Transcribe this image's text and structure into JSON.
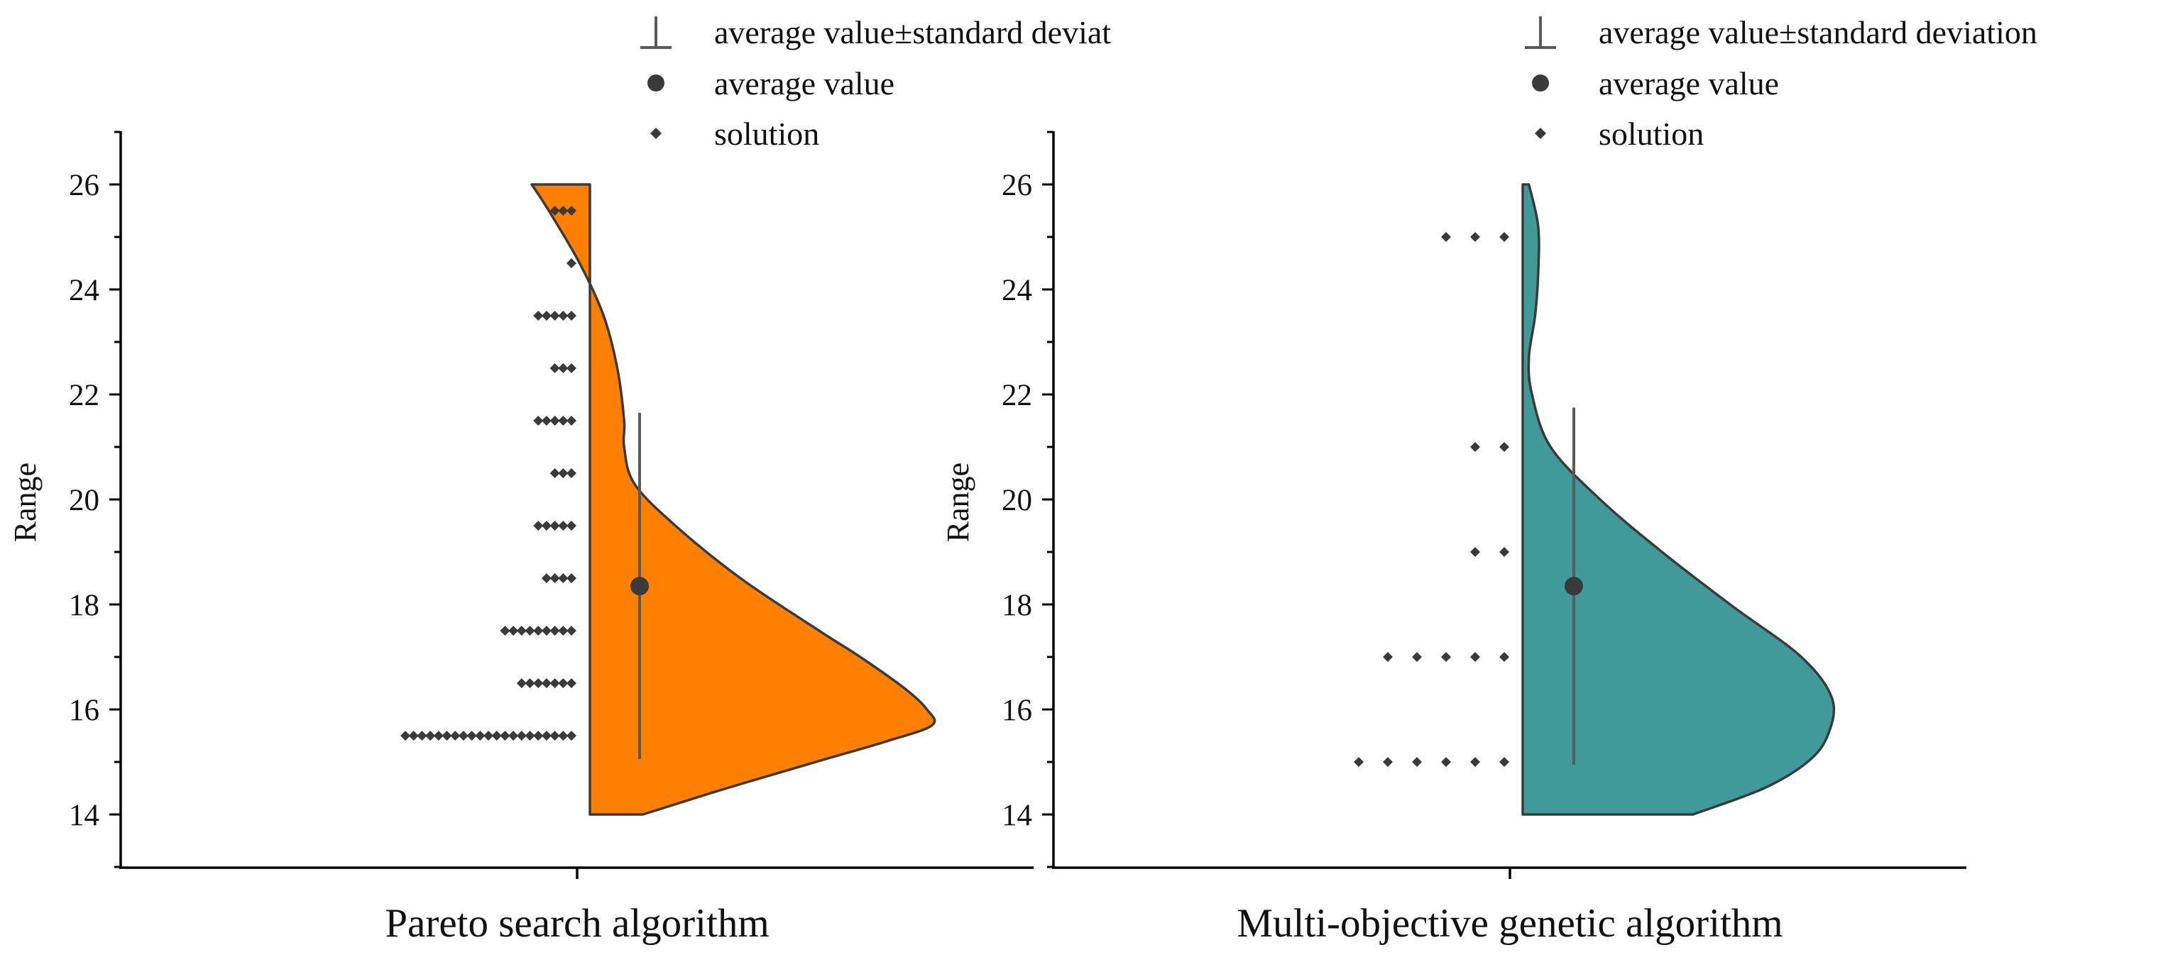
{
  "colors": {
    "axis": "#000000",
    "outline": "#3a3a3a",
    "dot": "#3a3a3a",
    "errbar": "#5a5a5a",
    "panel1_fill": "#ff7f00",
    "panel2_fill": "#419a9a"
  },
  "chart_data": [
    {
      "type": "violin-swarm",
      "title": "",
      "xlabel": "Pareto search algorithm",
      "ylabel": "Range",
      "ylim": [
        13,
        27
      ],
      "yticks": [
        "14",
        "16",
        "18",
        "20",
        "22",
        "24",
        "26"
      ],
      "category": "Pareto search algorithm",
      "legend": {
        "placement": "top-center",
        "entries": [
          "average value±standard deviat",
          "average value",
          "solution"
        ]
      },
      "mean": 18.35,
      "std_range": [
        15.05,
        21.65
      ],
      "violin_profile": [
        {
          "y": 14.0,
          "width": 0.155
        },
        {
          "y": 14.5,
          "width": 0.4
        },
        {
          "y": 15.0,
          "width": 0.66
        },
        {
          "y": 15.4,
          "width": 0.87
        },
        {
          "y": 15.7,
          "width": 1.0
        },
        {
          "y": 16.0,
          "width": 0.985
        },
        {
          "y": 16.4,
          "width": 0.92
        },
        {
          "y": 17.0,
          "width": 0.79
        },
        {
          "y": 17.5,
          "width": 0.67
        },
        {
          "y": 18.5,
          "width": 0.44
        },
        {
          "y": 19.5,
          "width": 0.25
        },
        {
          "y": 20.3,
          "width": 0.13
        },
        {
          "y": 21.0,
          "width": 0.1
        },
        {
          "y": 21.5,
          "width": 0.1
        },
        {
          "y": 22.5,
          "width": 0.08
        },
        {
          "y": 23.5,
          "width": 0.04
        },
        {
          "y": 24.5,
          "width": -0.03
        },
        {
          "y": 25.5,
          "width": -0.12
        },
        {
          "y": 26.0,
          "width": -0.17
        }
      ],
      "solutions": [
        {
          "y": 15.5,
          "count": 21
        },
        {
          "y": 16.5,
          "count": 7
        },
        {
          "y": 17.5,
          "count": 9
        },
        {
          "y": 18.5,
          "count": 4
        },
        {
          "y": 19.5,
          "count": 5
        },
        {
          "y": 20.5,
          "count": 3
        },
        {
          "y": 21.5,
          "count": 5
        },
        {
          "y": 22.5,
          "count": 3
        },
        {
          "y": 23.5,
          "count": 5
        },
        {
          "y": 24.5,
          "count": 1
        },
        {
          "y": 25.5,
          "count": 3
        }
      ]
    },
    {
      "type": "violin-swarm",
      "title": "",
      "xlabel": "Multi-objective genetic algorithm",
      "ylabel": "Range",
      "ylim": [
        13,
        27
      ],
      "yticks": [
        "14",
        "16",
        "18",
        "20",
        "22",
        "24",
        "26"
      ],
      "category": "Multi-objective genetic algorithm",
      "legend": {
        "placement": "top-right",
        "entries": [
          "average value±standard deviation",
          "average value",
          "solution"
        ]
      },
      "mean": 18.35,
      "std_range": [
        14.95,
        21.75
      ],
      "violin_profile": [
        {
          "y": 14.0,
          "width": 0.55
        },
        {
          "y": 14.5,
          "width": 0.78
        },
        {
          "y": 15.0,
          "width": 0.92
        },
        {
          "y": 15.5,
          "width": 0.985
        },
        {
          "y": 16.2,
          "width": 1.0
        },
        {
          "y": 17.0,
          "width": 0.9
        },
        {
          "y": 18.0,
          "width": 0.67
        },
        {
          "y": 19.0,
          "width": 0.45
        },
        {
          "y": 20.0,
          "width": 0.25
        },
        {
          "y": 21.0,
          "width": 0.09
        },
        {
          "y": 22.0,
          "width": 0.03
        },
        {
          "y": 22.7,
          "width": 0.02
        },
        {
          "y": 23.5,
          "width": 0.04
        },
        {
          "y": 24.3,
          "width": 0.05
        },
        {
          "y": 25.2,
          "width": 0.05
        },
        {
          "y": 26.0,
          "width": 0.02
        }
      ],
      "solutions": [
        {
          "y": 15,
          "count": 6
        },
        {
          "y": 17,
          "count": 5
        },
        {
          "y": 19,
          "count": 2
        },
        {
          "y": 21,
          "count": 2
        },
        {
          "y": 25,
          "count": 3
        }
      ]
    }
  ]
}
